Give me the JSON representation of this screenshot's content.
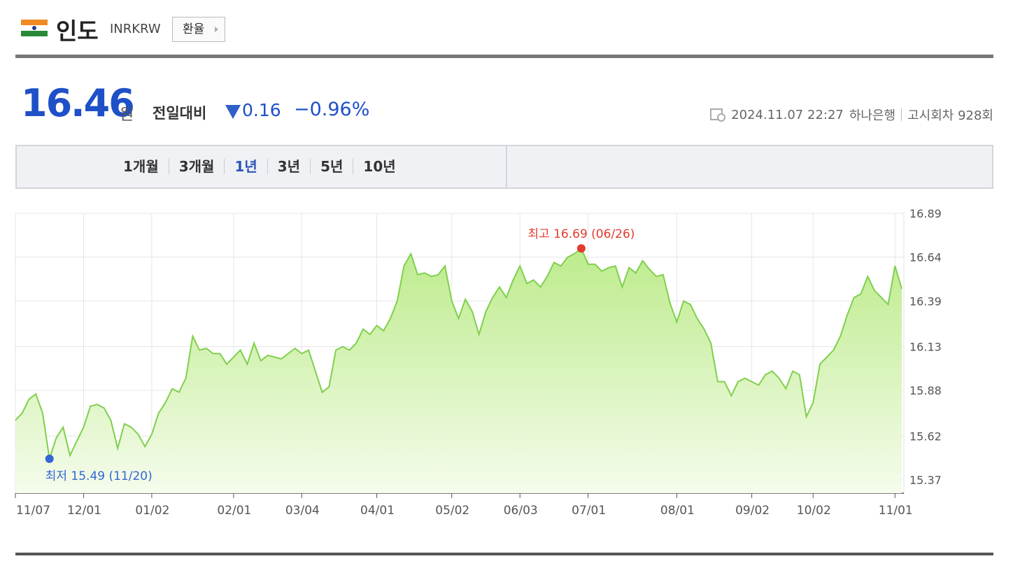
{
  "header": {
    "country": "인도",
    "code": "INRKRW",
    "button": "환율"
  },
  "quote": {
    "price": "16.46",
    "unit": "원",
    "change_label": "전일대비",
    "change": "0.16",
    "change_pct": "−0.96%",
    "datetime": "2024.11.07 22:27",
    "bank": "하나은행",
    "round": "고시회차 928회"
  },
  "tabs": [
    "1개월",
    "3개월",
    "1년",
    "3년",
    "5년",
    "10년"
  ],
  "chart_data": {
    "type": "line",
    "color": "#7fd04c",
    "fill_top": "#bdeb8c",
    "fill_bottom": "#f5fcec",
    "high_label": "최고 16.69 (06/26)",
    "high_color": "#e23a2e",
    "low_label": "최저 15.49 (11/20)",
    "low_color": "#3466d6",
    "ylim": [
      15.37,
      16.89
    ],
    "yticks": [
      15.37,
      15.62,
      15.88,
      16.13,
      16.39,
      16.64,
      16.89
    ],
    "grid": true,
    "categories": [
      "11/07",
      null,
      null,
      null,
      null,
      null,
      null,
      null,
      null,
      null,
      "12/01",
      null,
      null,
      null,
      null,
      null,
      null,
      null,
      null,
      null,
      "01/02",
      null,
      null,
      null,
      null,
      null,
      null,
      null,
      null,
      null,
      null,
      null,
      "02/01",
      null,
      null,
      null,
      null,
      null,
      null,
      null,
      null,
      null,
      "03/04",
      null,
      null,
      null,
      null,
      null,
      null,
      null,
      null,
      null,
      null,
      "04/01",
      null,
      null,
      null,
      null,
      null,
      null,
      null,
      null,
      null,
      null,
      "05/02",
      null,
      null,
      null,
      null,
      null,
      null,
      null,
      null,
      null,
      "06/03",
      null,
      null,
      null,
      null,
      null,
      null,
      null,
      null,
      null,
      "07/01",
      null,
      null,
      null,
      null,
      null,
      null,
      null,
      null,
      null,
      null,
      null,
      null,
      "08/01",
      null,
      null,
      null,
      null,
      null,
      null,
      null,
      null,
      null,
      null,
      "09/02",
      null,
      null,
      null,
      null,
      null,
      null,
      null,
      null,
      "10/02",
      null,
      null,
      null,
      null,
      null,
      null,
      null,
      null,
      null,
      null,
      null,
      "11/01",
      null
    ],
    "values": [
      15.71,
      15.75,
      15.83,
      15.86,
      15.75,
      15.49,
      15.61,
      15.67,
      15.51,
      15.59,
      15.67,
      15.79,
      15.8,
      15.78,
      15.71,
      15.55,
      15.69,
      15.67,
      15.63,
      15.56,
      15.63,
      15.75,
      15.81,
      15.89,
      15.87,
      15.95,
      16.19,
      16.11,
      16.12,
      16.09,
      16.09,
      16.03,
      16.07,
      16.11,
      16.03,
      16.15,
      16.05,
      16.08,
      16.07,
      16.06,
      16.09,
      16.12,
      16.09,
      16.11,
      15.99,
      15.87,
      15.9,
      16.11,
      16.13,
      16.11,
      16.15,
      16.23,
      16.2,
      16.25,
      16.22,
      16.29,
      16.39,
      16.59,
      16.66,
      16.54,
      16.55,
      16.53,
      16.54,
      16.59,
      16.39,
      16.29,
      16.4,
      16.33,
      16.2,
      16.33,
      16.41,
      16.47,
      16.41,
      16.51,
      16.59,
      16.49,
      16.51,
      16.47,
      16.53,
      16.61,
      16.59,
      16.64,
      16.66,
      16.69,
      16.6,
      16.6,
      16.56,
      16.58,
      16.59,
      16.47,
      16.58,
      16.55,
      16.62,
      16.57,
      16.53,
      16.54,
      16.38,
      16.27,
      16.39,
      16.37,
      16.29,
      16.23,
      16.15,
      15.93,
      15.93,
      15.85,
      15.93,
      15.95,
      15.93,
      15.91,
      15.97,
      15.99,
      15.95,
      15.89,
      15.99,
      15.97,
      15.73,
      15.81,
      16.03,
      16.07,
      16.11,
      16.19,
      16.31,
      16.41,
      16.43,
      16.53,
      16.45,
      16.41,
      16.37,
      16.59,
      16.46
    ]
  }
}
